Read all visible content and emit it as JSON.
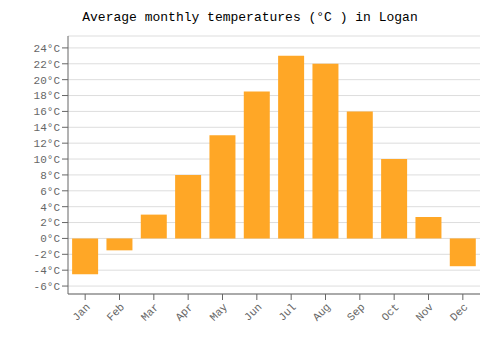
{
  "chart_data": {
    "type": "bar",
    "title": "Average monthly temperatures (°C ) in Logan",
    "categories": [
      "Jan",
      "Feb",
      "Mar",
      "Apr",
      "May",
      "Jun",
      "Jul",
      "Aug",
      "Sep",
      "Oct",
      "Nov",
      "Dec"
    ],
    "values": [
      -4.5,
      -1.5,
      3.0,
      8.0,
      13.0,
      18.5,
      23.0,
      22.0,
      16.0,
      10.0,
      2.7,
      -3.5
    ],
    "color": "#FFA726",
    "ylim": [
      -7,
      25.5
    ],
    "yticks": [
      {
        "value": -6,
        "label": "-6°C"
      },
      {
        "value": -4,
        "label": "-4°C"
      },
      {
        "value": -2,
        "label": "-2°C"
      },
      {
        "value": 0,
        "label": "0°C"
      },
      {
        "value": 2,
        "label": "2°C"
      },
      {
        "value": 4,
        "label": "4°C"
      },
      {
        "value": 6,
        "label": "6°C"
      },
      {
        "value": 8,
        "label": "8°C"
      },
      {
        "value": 10,
        "label": "10°C"
      },
      {
        "value": 12,
        "label": "12°C"
      },
      {
        "value": 14,
        "label": "14°C"
      },
      {
        "value": 16,
        "label": "16°C"
      },
      {
        "value": 18,
        "label": "18°C"
      },
      {
        "value": 20,
        "label": "20°C"
      },
      {
        "value": 22,
        "label": "22°C"
      },
      {
        "value": 24,
        "label": "24°C"
      }
    ],
    "grid": true
  }
}
